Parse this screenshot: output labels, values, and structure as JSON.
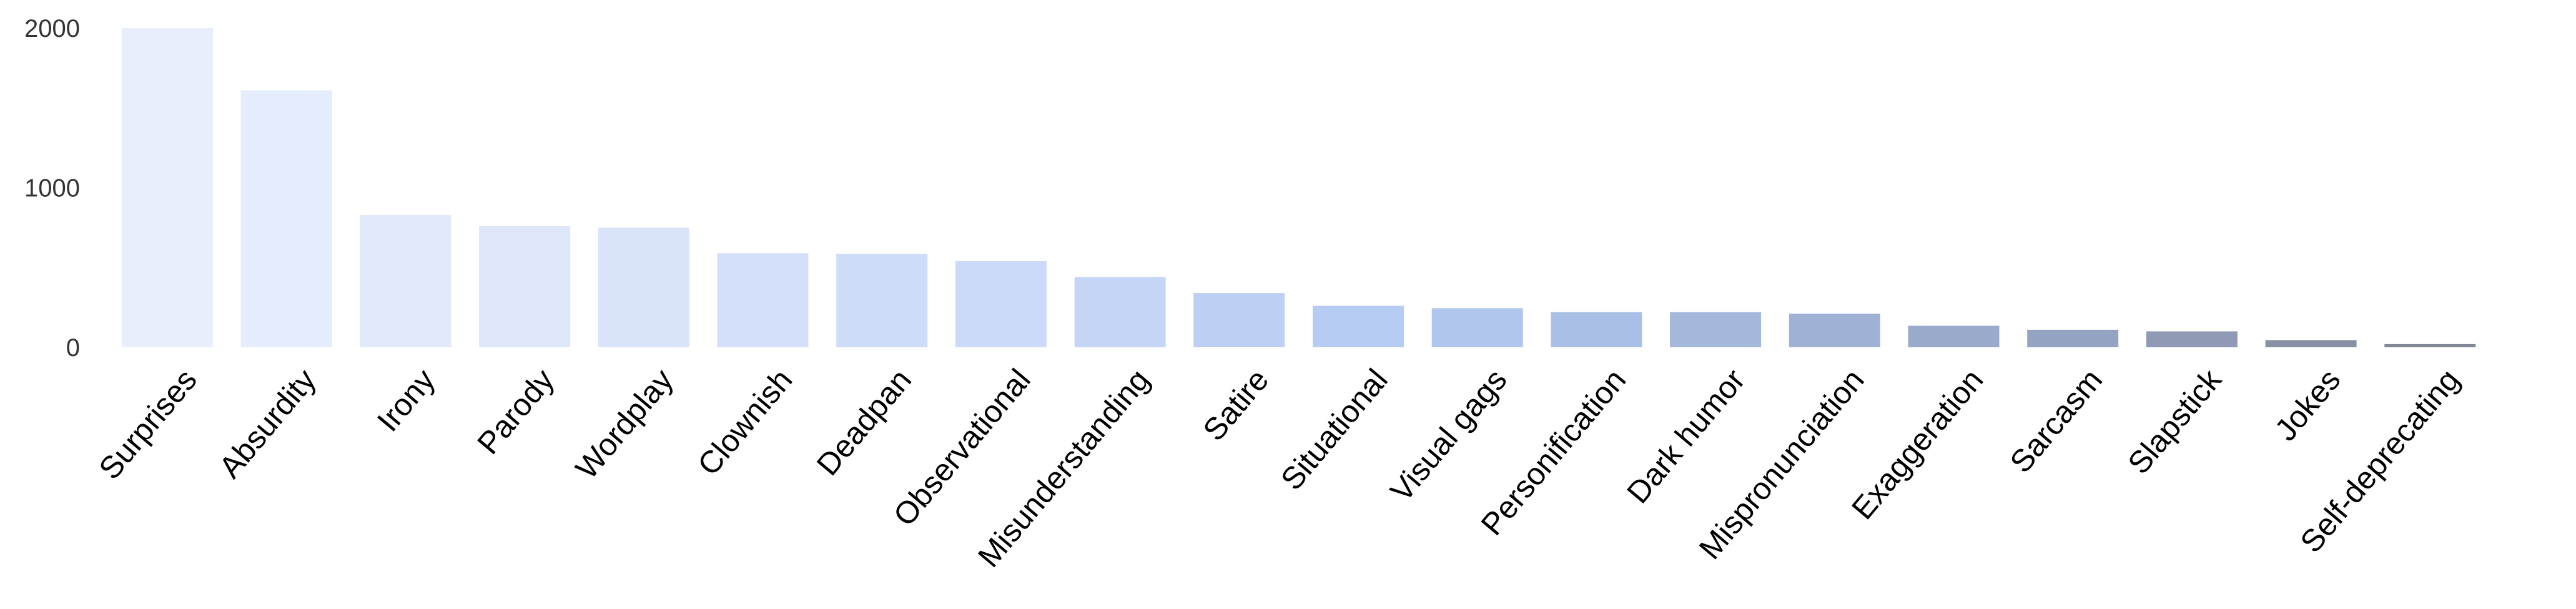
{
  "chart_data": {
    "type": "bar",
    "title": "",
    "xlabel": "",
    "ylabel": "",
    "ylim": [
      0,
      2000
    ],
    "yticks": [
      0,
      1000,
      2000
    ],
    "grid": false,
    "legend": "none",
    "categories": [
      "Surprises",
      "Absurdity",
      "Irony",
      "Parody",
      "Wordplay",
      "Clownish",
      "Deadpan",
      "Observational",
      "Misunderstanding",
      "Satire",
      "Situational",
      "Visual gags",
      "Personification",
      "Dark humor",
      "Mispronunciation",
      "Exaggeration",
      "Sarcasm",
      "Slapstick",
      "Jokes",
      "Self-deprecating"
    ],
    "values": [
      2000,
      1610,
      830,
      760,
      750,
      590,
      585,
      540,
      440,
      340,
      260,
      245,
      220,
      220,
      210,
      135,
      110,
      100,
      45,
      20
    ],
    "colors": [
      "#e8eefc",
      "#e5ecfc",
      "#e2e9fb",
      "#dee6fa",
      "#d9e3fa",
      "#d4e0f9",
      "#cfdcf8",
      "#cadaf8",
      "#c4d5f6",
      "#bdd0f4",
      "#b7ccf2",
      "#b0c5ec",
      "#aabfe5",
      "#a4b8dc",
      "#9fb2d6",
      "#9aaacb",
      "#95a3c2",
      "#909ab5",
      "#8890a6",
      "#808895"
    ]
  }
}
